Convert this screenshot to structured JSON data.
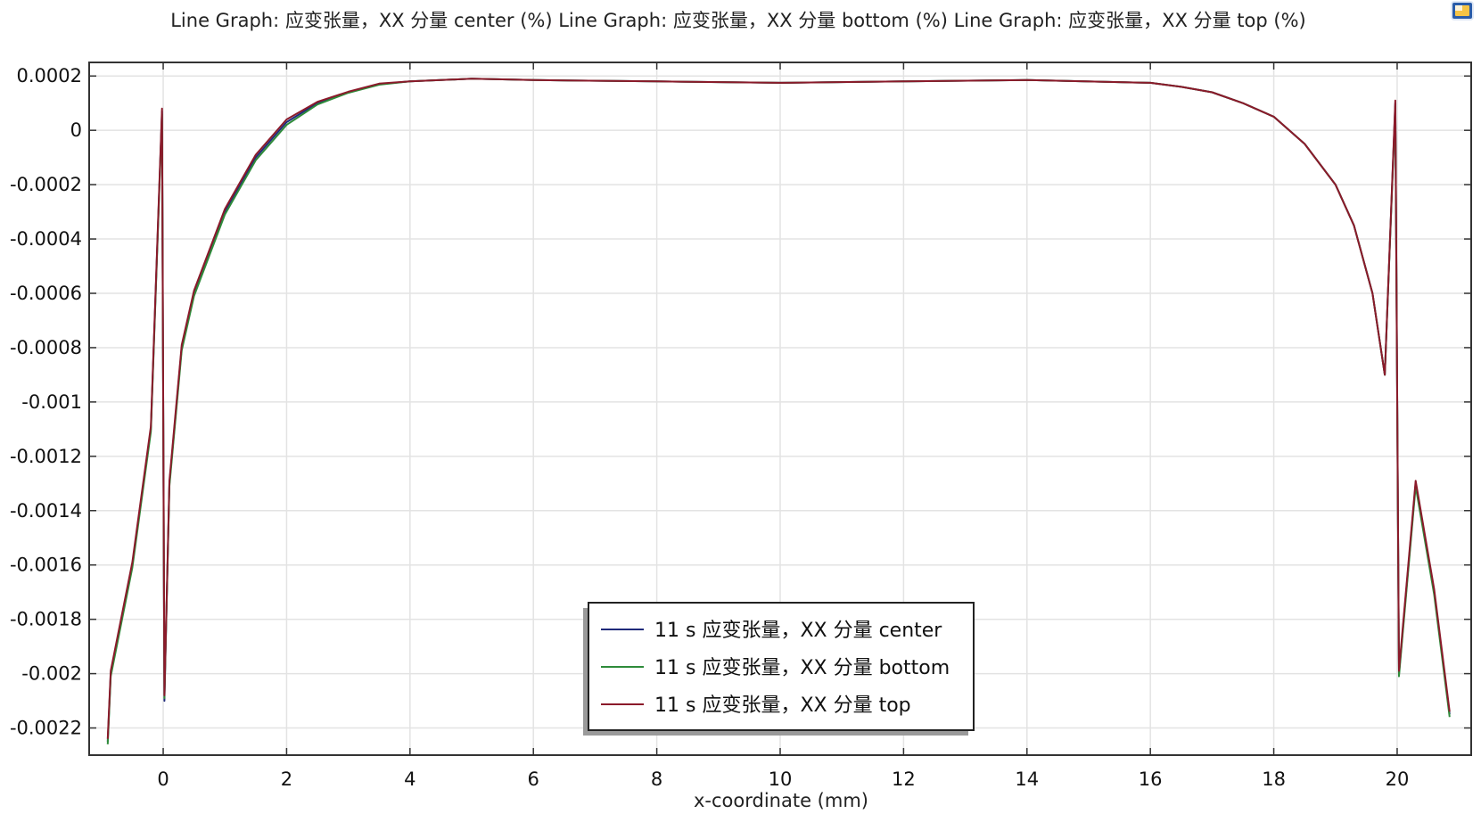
{
  "chart_data": {
    "type": "line",
    "title": "Line Graph: 应变张量，XX 分量 center (%)  Line Graph: 应变张量，XX 分量 bottom (%)  Line Graph: 应变张量，XX 分量 top (%)",
    "xlabel": "x-coordinate (mm)",
    "ylabel": "",
    "xlim": [
      -1.2,
      21.2
    ],
    "ylim": [
      -0.0023,
      0.00025
    ],
    "grid": true,
    "legend_position": "bottom-center",
    "x_ticks": [
      "0",
      "2",
      "4",
      "6",
      "8",
      "10",
      "12",
      "14",
      "16",
      "18",
      "20"
    ],
    "x_tick_values": [
      0,
      2,
      4,
      6,
      8,
      10,
      12,
      14,
      16,
      18,
      20
    ],
    "y_ticks": [
      "0.0002",
      "0",
      "-0.0002",
      "-0.0004",
      "-0.0006",
      "-0.0008",
      "-0.001",
      "-0.0012",
      "-0.0014",
      "-0.0016",
      "-0.0018",
      "-0.002",
      "-0.0022"
    ],
    "y_tick_values": [
      0.0002,
      0,
      -0.0002,
      -0.0004,
      -0.0006,
      -0.0008,
      -0.001,
      -0.0012,
      -0.0014,
      -0.0016,
      -0.0018,
      -0.002,
      -0.0022
    ],
    "series": [
      {
        "name": "11 s 应变张量，XX 分量 center",
        "color": "#1f2a7a",
        "x": [
          -0.9,
          -0.85,
          -0.5,
          -0.2,
          -0.02,
          0.02,
          0.1,
          0.3,
          0.5,
          1.0,
          1.5,
          2.0,
          2.5,
          3.0,
          3.5,
          4.0,
          5.0,
          6.0,
          8.0,
          10.0,
          12.0,
          14.0,
          16.0,
          16.5,
          17.0,
          17.5,
          18.0,
          18.5,
          19.0,
          19.3,
          19.6,
          19.8,
          19.97,
          20.03,
          20.3,
          20.6,
          20.85
        ],
        "y": [
          -0.00225,
          -0.002,
          -0.0016,
          -0.0011,
          7e-05,
          -0.0021,
          -0.0013,
          -0.0008,
          -0.0006,
          -0.0003,
          -0.0001,
          3e-05,
          0.0001,
          0.00014,
          0.00017,
          0.00018,
          0.00019,
          0.000185,
          0.00018,
          0.000175,
          0.00018,
          0.000185,
          0.000175,
          0.00016,
          0.00014,
          0.0001,
          5e-05,
          -5e-05,
          -0.0002,
          -0.00035,
          -0.0006,
          -0.0009,
          0.0001,
          -0.002,
          -0.0013,
          -0.0017,
          -0.00215
        ]
      },
      {
        "name": "11 s 应变张量，XX 分量 bottom",
        "color": "#2e8b3a",
        "x": [
          -0.9,
          -0.85,
          -0.5,
          -0.2,
          -0.02,
          0.02,
          0.1,
          0.3,
          0.5,
          1.0,
          1.5,
          2.0,
          2.5,
          3.0,
          3.5,
          4.0,
          5.0,
          6.0,
          8.0,
          10.0,
          12.0,
          14.0,
          16.0,
          16.5,
          17.0,
          17.5,
          18.0,
          18.5,
          19.0,
          19.3,
          19.6,
          19.8,
          19.97,
          20.03,
          20.3,
          20.6,
          20.85
        ],
        "y": [
          -0.00226,
          -0.00201,
          -0.00161,
          -0.00111,
          6e-05,
          -0.00209,
          -0.00131,
          -0.00081,
          -0.00061,
          -0.00031,
          -0.00011,
          2e-05,
          9.5e-05,
          0.000138,
          0.000168,
          0.00018,
          0.00019,
          0.000185,
          0.00018,
          0.000175,
          0.00018,
          0.000185,
          0.000175,
          0.00016,
          0.00014,
          0.0001,
          5e-05,
          -5e-05,
          -0.0002,
          -0.00035,
          -0.0006,
          -0.0009,
          9e-05,
          -0.00201,
          -0.00131,
          -0.00171,
          -0.00216
        ]
      },
      {
        "name": "11 s 应变张量，XX 分量 top",
        "color": "#8b1a2a",
        "x": [
          -0.9,
          -0.85,
          -0.5,
          -0.2,
          -0.02,
          0.02,
          0.1,
          0.3,
          0.5,
          1.0,
          1.5,
          2.0,
          2.5,
          3.0,
          3.5,
          4.0,
          5.0,
          6.0,
          8.0,
          10.0,
          12.0,
          14.0,
          16.0,
          16.5,
          17.0,
          17.5,
          18.0,
          18.5,
          19.0,
          19.3,
          19.6,
          19.8,
          19.97,
          20.03,
          20.3,
          20.6,
          20.85
        ],
        "y": [
          -0.00224,
          -0.00199,
          -0.00159,
          -0.00109,
          8e-05,
          -0.00208,
          -0.00129,
          -0.00079,
          -0.00059,
          -0.00029,
          -9e-05,
          4e-05,
          0.000105,
          0.000142,
          0.000172,
          0.00018,
          0.00019,
          0.000185,
          0.00018,
          0.000175,
          0.00018,
          0.000185,
          0.000175,
          0.00016,
          0.00014,
          0.0001,
          5e-05,
          -5e-05,
          -0.0002,
          -0.00035,
          -0.0006,
          -0.0009,
          0.00011,
          -0.00199,
          -0.00129,
          -0.00169,
          -0.00214
        ]
      }
    ]
  },
  "ui": {
    "corner_icon": "graphics-window-icon"
  }
}
